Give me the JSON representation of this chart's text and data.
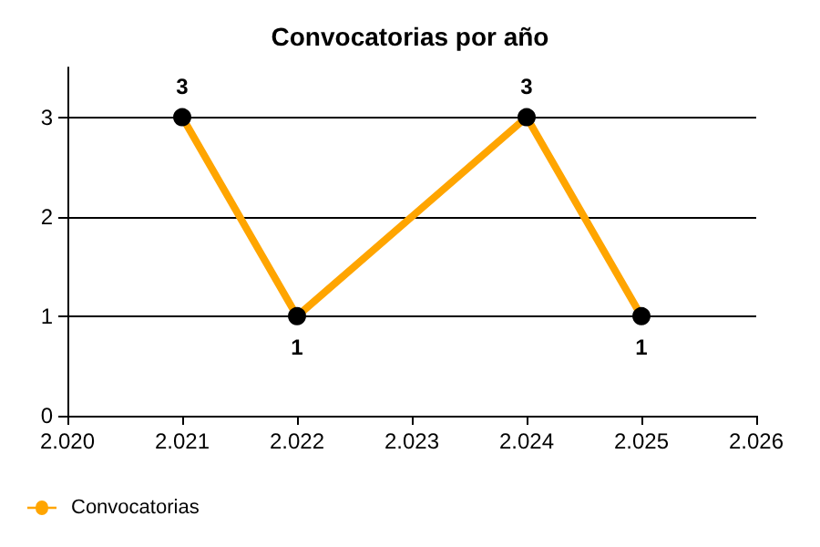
{
  "chart_data": {
    "type": "line",
    "title": "Convocatorias por año",
    "x": [
      2021,
      2022,
      2024,
      2025
    ],
    "series": [
      {
        "name": "Convocatorias",
        "color": "#ffa500",
        "values": [
          3,
          1,
          3,
          1
        ]
      }
    ],
    "xlim": [
      2020,
      2026
    ],
    "xticks": [
      {
        "value": 2020,
        "label": "2.020"
      },
      {
        "value": 2021,
        "label": "2.021"
      },
      {
        "value": 2022,
        "label": "2.022"
      },
      {
        "value": 2023,
        "label": "2.023"
      },
      {
        "value": 2024,
        "label": "2.024"
      },
      {
        "value": 2025,
        "label": "2.025"
      },
      {
        "value": 2026,
        "label": "2.026"
      }
    ],
    "ylim": [
      0,
      3.5
    ],
    "yticks": [
      0,
      1,
      2,
      3
    ],
    "grid": "y",
    "legend": "bottom left",
    "marker": "circle",
    "line_style": "solid",
    "data_labels": true
  }
}
